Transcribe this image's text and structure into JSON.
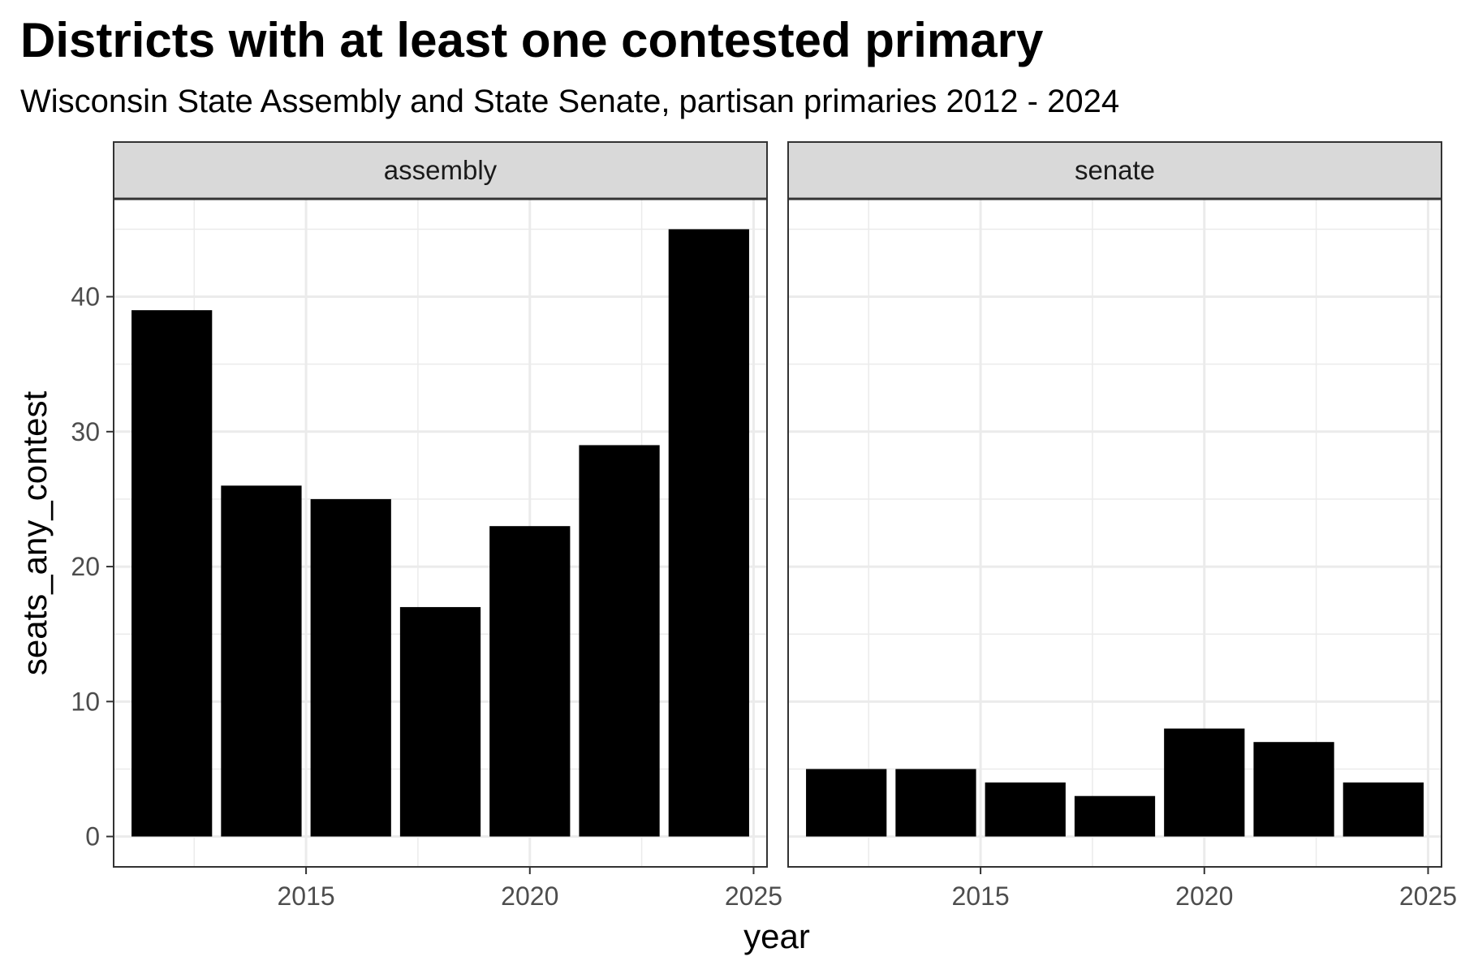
{
  "title": "Districts with at least one contested primary",
  "subtitle": "Wisconsin State Assembly and State Senate, partisan primaries 2012 - 2024",
  "chart_data": {
    "type": "bar",
    "xlabel": "year",
    "ylabel": "seats_any_contest",
    "x_ticks": [
      2015,
      2020,
      2025
    ],
    "y_ticks": [
      0,
      10,
      20,
      30,
      40
    ],
    "xlim": [
      2010.7,
      2025.3
    ],
    "ylim": [
      -2.25,
      47.25
    ],
    "grid": true,
    "bar_color": "#000000",
    "panels": [
      {
        "name": "assembly",
        "x": [
          2012,
          2014,
          2016,
          2018,
          2020,
          2022,
          2024
        ],
        "values": [
          39,
          26,
          25,
          17,
          23,
          29,
          45
        ]
      },
      {
        "name": "senate",
        "x": [
          2012,
          2014,
          2016,
          2018,
          2020,
          2022,
          2024
        ],
        "values": [
          5,
          5,
          4,
          3,
          8,
          7,
          4
        ]
      }
    ]
  }
}
